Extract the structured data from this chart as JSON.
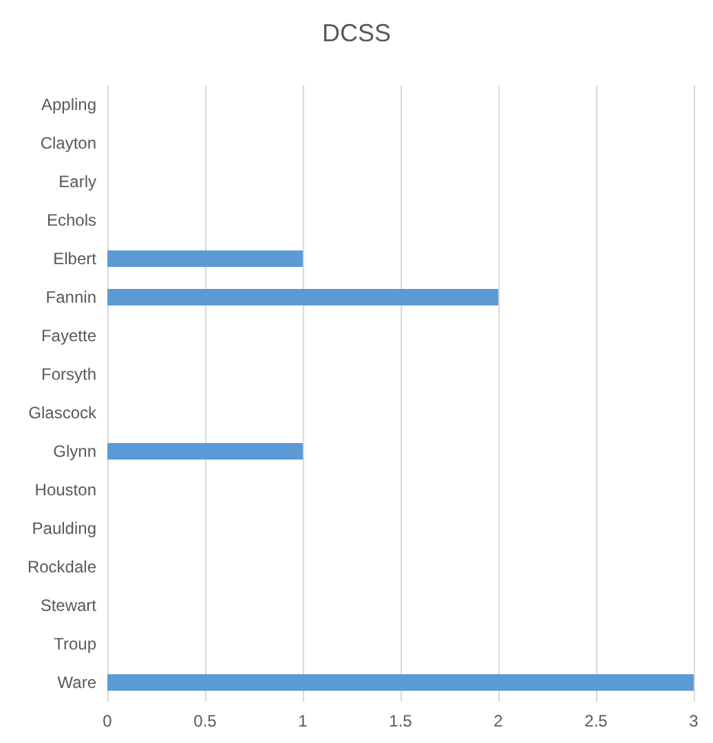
{
  "chart_data": {
    "type": "bar",
    "title": "DCSS",
    "orientation": "horizontal",
    "categories": [
      "Appling",
      "Clayton",
      "Early",
      "Echols",
      "Elbert",
      "Fannin",
      "Fayette",
      "Forsyth",
      "Glascock",
      "Glynn",
      "Houston",
      "Paulding",
      "Rockdale",
      "Stewart",
      "Troup",
      "Ware"
    ],
    "values": [
      0,
      0,
      0,
      0,
      1,
      2,
      0,
      0,
      0,
      1,
      0,
      0,
      0,
      0,
      0,
      3
    ],
    "color": "#5b9bd5",
    "xlim": [
      0,
      3
    ],
    "xticks": [
      0,
      0.5,
      1,
      1.5,
      2,
      2.5,
      3
    ],
    "grid": "x"
  }
}
